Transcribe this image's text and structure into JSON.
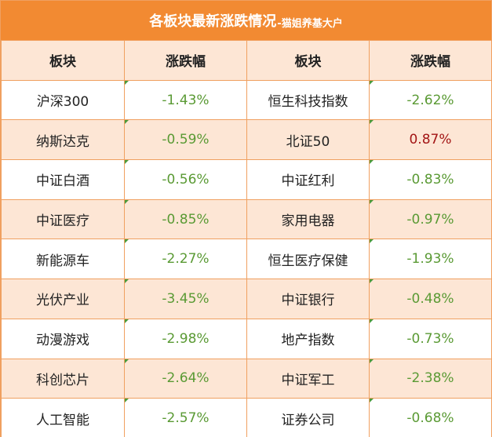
{
  "title": {
    "main": "各板块最新涨跌情况",
    "sub": "-猫姐养基大户"
  },
  "colors": {
    "header_bg": "#f28a32",
    "row_alt_bg": "#fde6d5",
    "border": "#f0a060",
    "down_green": "#5a9a34",
    "up_red": "#a31515"
  },
  "headers": [
    "板块",
    "涨跌幅",
    "板块",
    "涨跌幅"
  ],
  "rows": [
    {
      "left_name": "沪深300",
      "left_change": "-1.43%",
      "right_name": "恒生科技指数",
      "right_change": "-2.62%"
    },
    {
      "left_name": "纳斯达克",
      "left_change": "-0.59%",
      "right_name": "北证50",
      "right_change": "0.87%"
    },
    {
      "left_name": "中证白酒",
      "left_change": "-0.56%",
      "right_name": "中证红利",
      "right_change": "-0.83%"
    },
    {
      "left_name": "中证医疗",
      "left_change": "-0.85%",
      "right_name": "家用电器",
      "right_change": "-0.97%"
    },
    {
      "left_name": "新能源车",
      "left_change": "-2.27%",
      "right_name": "恒生医疗保健",
      "right_change": "-1.93%"
    },
    {
      "left_name": "光伏产业",
      "left_change": "-3.45%",
      "right_name": "中证银行",
      "right_change": "-0.48%"
    },
    {
      "left_name": "动漫游戏",
      "left_change": "-2.98%",
      "right_name": "地产指数",
      "right_change": "-0.73%"
    },
    {
      "left_name": "科创芯片",
      "left_change": "-2.64%",
      "right_name": "中证军工",
      "right_change": "-2.38%"
    },
    {
      "left_name": "人工智能",
      "left_change": "-2.57%",
      "right_name": "证券公司",
      "right_change": "-0.68%"
    }
  ]
}
